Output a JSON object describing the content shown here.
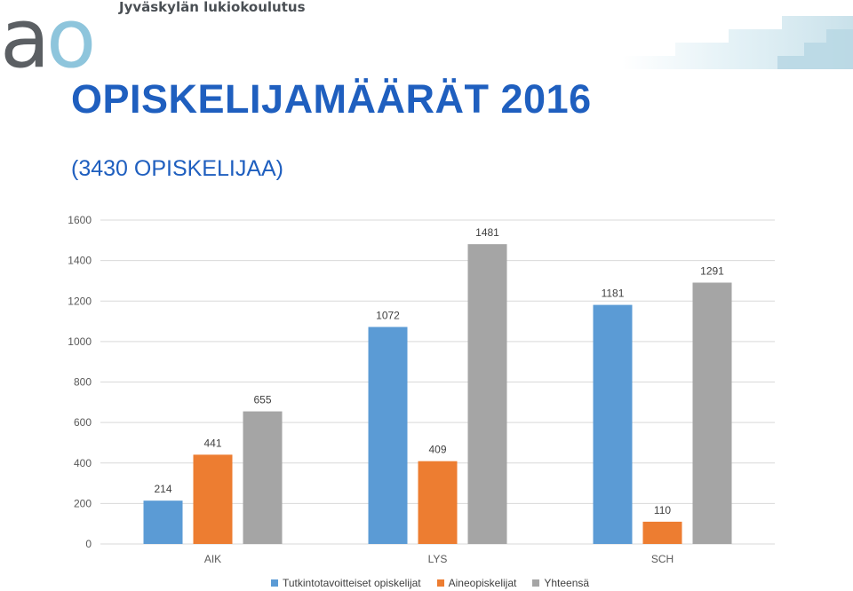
{
  "header": {
    "logo_mark": "ao",
    "organization": "Jyväskylän lukiokoulutus"
  },
  "title": "OPISKELIJAMÄÄRÄT 2016",
  "subtitle": "(3430 OPISKELIJAA)",
  "colors": {
    "title": "#1f5fbf",
    "logo_a": "#5b5f63",
    "logo_o": "#8ec5dc"
  },
  "chart_data": {
    "type": "bar",
    "categories": [
      "AIK",
      "LYS",
      "SCH"
    ],
    "series": [
      {
        "name": "Tutkintotavoitteiset opiskelijat",
        "color": "#5b9bd5",
        "values": [
          214,
          1072,
          1181
        ]
      },
      {
        "name": "Aineopiskelijat",
        "color": "#ed7d31",
        "values": [
          441,
          409,
          110
        ]
      },
      {
        "name": "Yhteensä",
        "color": "#a5a5a5",
        "values": [
          655,
          1481,
          1291
        ]
      }
    ],
    "ylim": [
      0,
      1600
    ],
    "yticks": [
      0,
      200,
      400,
      600,
      800,
      1000,
      1200,
      1400,
      1600
    ],
    "grid": true,
    "legend_position": "bottom",
    "data_labels": true
  }
}
